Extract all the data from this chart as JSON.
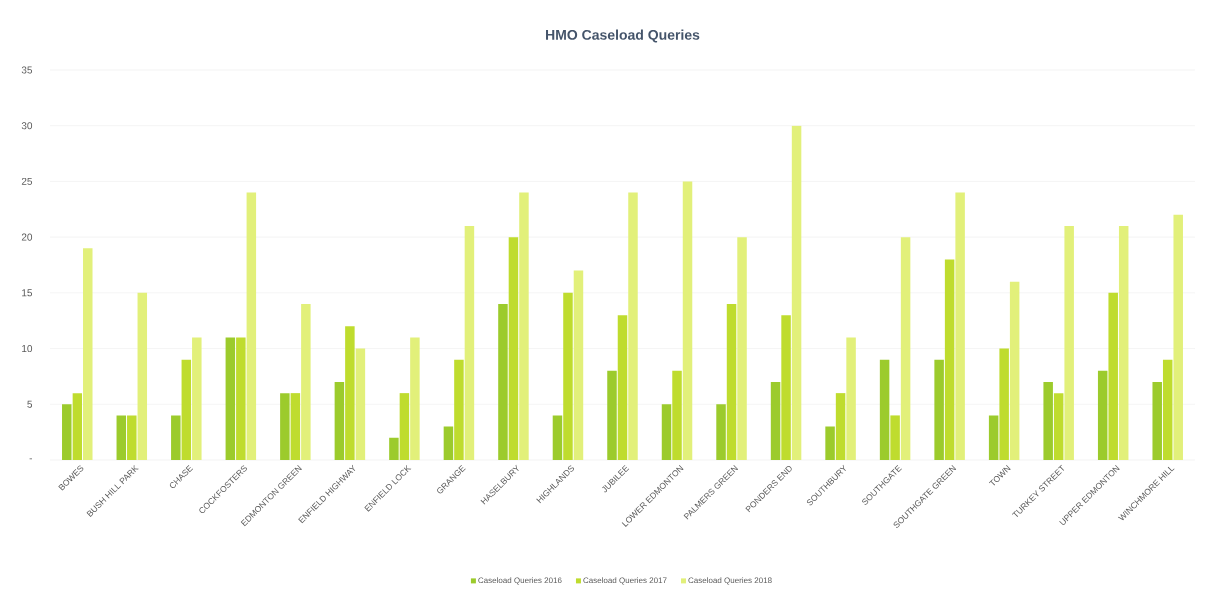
{
  "chart_data": {
    "type": "bar",
    "title": "HMO Caseload Queries",
    "categories": [
      "BOWES",
      "BUSH HILL PARK",
      "CHASE",
      "COCKFOSTERS",
      "EDMONTON GREEN",
      "ENFIELD HIGHWAY",
      "ENFIELD LOCK",
      "GRANGE",
      "HASELBURY",
      "HIGHLANDS",
      "JUBILEE",
      "LOWER EDMONTON",
      "PALMERS GREEN",
      "PONDERS END",
      "SOUTHBURY",
      "SOUTHGATE",
      "SOUTHGATE GREEN",
      "TOWN",
      "TURKEY STREET",
      "UPPER EDMONTON",
      "WINCHMORE HILL"
    ],
    "series": [
      {
        "name": "Caseload Queries 2016",
        "color": "#9ccb2c",
        "values": [
          5,
          4,
          4,
          11,
          6,
          7,
          2,
          3,
          14,
          4,
          8,
          5,
          5,
          7,
          3,
          9,
          9,
          4,
          7,
          8,
          7
        ]
      },
      {
        "name": "Caseload Queries 2017",
        "color": "#bfdc2e",
        "values": [
          6,
          4,
          9,
          11,
          6,
          12,
          6,
          9,
          20,
          15,
          13,
          8,
          14,
          13,
          6,
          4,
          18,
          10,
          6,
          15,
          9
        ]
      },
      {
        "name": "Caseload Queries 2018",
        "color": "#e2f07a",
        "values": [
          19,
          15,
          11,
          24,
          14,
          10,
          11,
          21,
          24,
          17,
          24,
          25,
          20,
          30,
          11,
          20,
          24,
          16,
          21,
          21,
          22
        ]
      }
    ],
    "ylim": [
      0,
      35
    ],
    "yticks": [
      {
        "value": 0,
        "label": "-"
      },
      5,
      10,
      15,
      20,
      25,
      30,
      35
    ],
    "grid": "y",
    "legend": "bottom"
  }
}
